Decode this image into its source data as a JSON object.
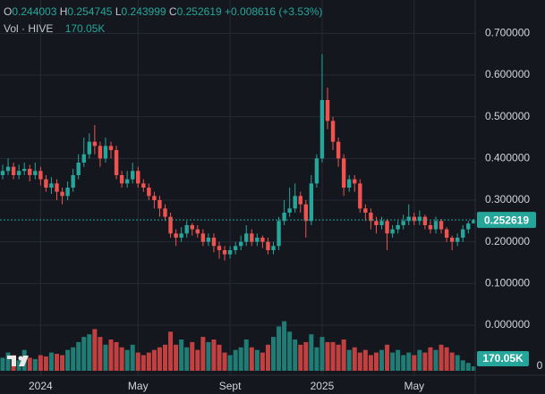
{
  "chart_data": {
    "type": "candlestick",
    "legend_letters": [
      "O",
      "H",
      "L",
      "C"
    ],
    "change": "+0.008616 (+3.53%)",
    "volume_name": "Vol · HIVE",
    "volume_label": "170.05K",
    "up_color": "#26a69a",
    "down_color": "#ef5350",
    "volume_up_color": "#1f7d75",
    "volume_down_color": "#c2403f",
    "grid": true,
    "ylim": [
      -0.12,
      0.78
    ],
    "yticks": [
      {
        "value": 0.7,
        "label": "0.700000"
      },
      {
        "value": 0.6,
        "label": "0.600000"
      },
      {
        "value": 0.5,
        "label": "0.500000"
      },
      {
        "value": 0.4,
        "label": "0.400000"
      },
      {
        "value": 0.3,
        "label": "0.300000"
      },
      {
        "value": 0.2,
        "label": "0.200000"
      },
      {
        "value": 0.1,
        "label": "0.100000"
      },
      {
        "value": 0,
        "label": "0.000000"
      }
    ],
    "volume_ylim": [
      0,
      2400000
    ],
    "volume_yticks": [
      0
    ],
    "categories": [
      null,
      null,
      null,
      null,
      null,
      null,
      null,
      "2024",
      null,
      null,
      null,
      null,
      null,
      null,
      null,
      null,
      null,
      null,
      null,
      null,
      null,
      null,
      null,
      null,
      null,
      "May",
      null,
      null,
      null,
      null,
      null,
      null,
      null,
      null,
      null,
      null,
      null,
      null,
      null,
      null,
      null,
      null,
      "Sept",
      null,
      null,
      null,
      null,
      null,
      null,
      null,
      null,
      null,
      null,
      null,
      null,
      null,
      null,
      null,
      null,
      "2025",
      null,
      null,
      null,
      null,
      null,
      null,
      null,
      null,
      null,
      null,
      null,
      null,
      null,
      null,
      null,
      null,
      "May",
      null,
      null,
      null,
      null,
      null,
      null,
      null,
      null,
      null,
      null,
      null
    ],
    "open": [
      0.36,
      0.37,
      0.38,
      0.36,
      0.37,
      0.375,
      0.36,
      0.37,
      0.35,
      0.33,
      0.34,
      0.32,
      0.31,
      0.33,
      0.36,
      0.39,
      0.41,
      0.44,
      0.43,
      0.4,
      0.43,
      0.42,
      0.36,
      0.34,
      0.35,
      0.37,
      0.34,
      0.33,
      0.31,
      0.3,
      0.28,
      0.26,
      0.22,
      0.21,
      0.22,
      0.24,
      0.23,
      0.22,
      0.2,
      0.21,
      0.19,
      0.18,
      0.17,
      0.18,
      0.19,
      0.2,
      0.22,
      0.2,
      0.21,
      0.2,
      0.18,
      0.19,
      0.25,
      0.27,
      0.28,
      0.31,
      0.29,
      0.25,
      0.34,
      0.4,
      0.54,
      0.49,
      0.44,
      0.4,
      0.33,
      0.35,
      0.34,
      0.28,
      0.27,
      0.25,
      0.24,
      0.25,
      0.22,
      0.23,
      0.24,
      0.25,
      0.26,
      0.25,
      0.26,
      0.24,
      0.23,
      0.25,
      0.23,
      0.21,
      0.2,
      0.21,
      0.23,
      0.244003
    ],
    "high": [
      0.385,
      0.4,
      0.39,
      0.385,
      0.39,
      0.385,
      0.39,
      0.38,
      0.36,
      0.355,
      0.35,
      0.33,
      0.345,
      0.375,
      0.41,
      0.45,
      0.46,
      0.48,
      0.44,
      0.45,
      0.44,
      0.43,
      0.37,
      0.37,
      0.39,
      0.38,
      0.35,
      0.34,
      0.32,
      0.31,
      0.29,
      0.27,
      0.23,
      0.235,
      0.25,
      0.245,
      0.24,
      0.23,
      0.22,
      0.22,
      0.2,
      0.19,
      0.19,
      0.2,
      0.215,
      0.24,
      0.23,
      0.22,
      0.215,
      0.21,
      0.2,
      0.26,
      0.3,
      0.33,
      0.34,
      0.32,
      0.3,
      0.36,
      0.41,
      0.65,
      0.57,
      0.5,
      0.45,
      0.41,
      0.36,
      0.36,
      0.35,
      0.29,
      0.28,
      0.26,
      0.26,
      0.255,
      0.24,
      0.25,
      0.265,
      0.29,
      0.27,
      0.275,
      0.265,
      0.25,
      0.26,
      0.255,
      0.235,
      0.215,
      0.22,
      0.24,
      0.25,
      0.254745
    ],
    "low": [
      0.35,
      0.36,
      0.35,
      0.35,
      0.36,
      0.345,
      0.35,
      0.335,
      0.32,
      0.315,
      0.3,
      0.29,
      0.3,
      0.32,
      0.35,
      0.38,
      0.4,
      0.41,
      0.38,
      0.39,
      0.4,
      0.35,
      0.33,
      0.33,
      0.34,
      0.33,
      0.32,
      0.3,
      0.28,
      0.26,
      0.25,
      0.21,
      0.19,
      0.2,
      0.21,
      0.215,
      0.21,
      0.19,
      0.19,
      0.175,
      0.16,
      0.155,
      0.16,
      0.17,
      0.18,
      0.19,
      0.19,
      0.19,
      0.185,
      0.17,
      0.17,
      0.18,
      0.24,
      0.26,
      0.27,
      0.27,
      0.21,
      0.24,
      0.33,
      0.39,
      0.47,
      0.42,
      0.38,
      0.31,
      0.32,
      0.32,
      0.27,
      0.25,
      0.23,
      0.22,
      0.23,
      0.18,
      0.21,
      0.22,
      0.23,
      0.24,
      0.24,
      0.24,
      0.23,
      0.22,
      0.22,
      0.22,
      0.2,
      0.18,
      0.19,
      0.2,
      0.22,
      0.243999
    ],
    "close": [
      0.37,
      0.38,
      0.36,
      0.37,
      0.375,
      0.36,
      0.37,
      0.35,
      0.33,
      0.34,
      0.32,
      0.31,
      0.33,
      0.36,
      0.39,
      0.41,
      0.44,
      0.43,
      0.4,
      0.43,
      0.42,
      0.36,
      0.34,
      0.35,
      0.37,
      0.34,
      0.33,
      0.31,
      0.3,
      0.28,
      0.26,
      0.22,
      0.21,
      0.22,
      0.24,
      0.23,
      0.22,
      0.2,
      0.21,
      0.19,
      0.18,
      0.17,
      0.18,
      0.19,
      0.2,
      0.22,
      0.2,
      0.21,
      0.2,
      0.18,
      0.19,
      0.25,
      0.27,
      0.28,
      0.31,
      0.29,
      0.25,
      0.34,
      0.4,
      0.54,
      0.49,
      0.44,
      0.4,
      0.33,
      0.35,
      0.34,
      0.28,
      0.27,
      0.25,
      0.24,
      0.25,
      0.22,
      0.23,
      0.24,
      0.25,
      0.26,
      0.25,
      0.26,
      0.24,
      0.23,
      0.25,
      0.23,
      0.21,
      0.2,
      0.21,
      0.23,
      0.244,
      0.252619
    ],
    "volume": [
      500000,
      700000,
      600000,
      400000,
      800000,
      500000,
      450000,
      600000,
      550000,
      700000,
      650000,
      600000,
      800000,
      900000,
      1100000,
      1300000,
      1400000,
      1600000,
      1300000,
      1000000,
      1200000,
      1100000,
      900000,
      800000,
      1000000,
      700000,
      600000,
      700000,
      800000,
      900000,
      1000000,
      1500000,
      1000000,
      1200000,
      900000,
      1100000,
      800000,
      1300000,
      1100000,
      1200000,
      1000000,
      700000,
      600000,
      800000,
      900000,
      1200000,
      900000,
      800000,
      700000,
      1000000,
      1300000,
      1700000,
      1900000,
      1500000,
      1200000,
      1000000,
      1100000,
      1400000,
      900000,
      1300000,
      1100000,
      1100000,
      1000000,
      1200000,
      800000,
      900000,
      700000,
      800000,
      600000,
      700000,
      800000,
      1000000,
      700000,
      800000,
      600000,
      700000,
      600000,
      800000,
      700000,
      900000,
      800000,
      1000000,
      900000,
      700000,
      600000,
      400000,
      300000,
      170050
    ]
  }
}
